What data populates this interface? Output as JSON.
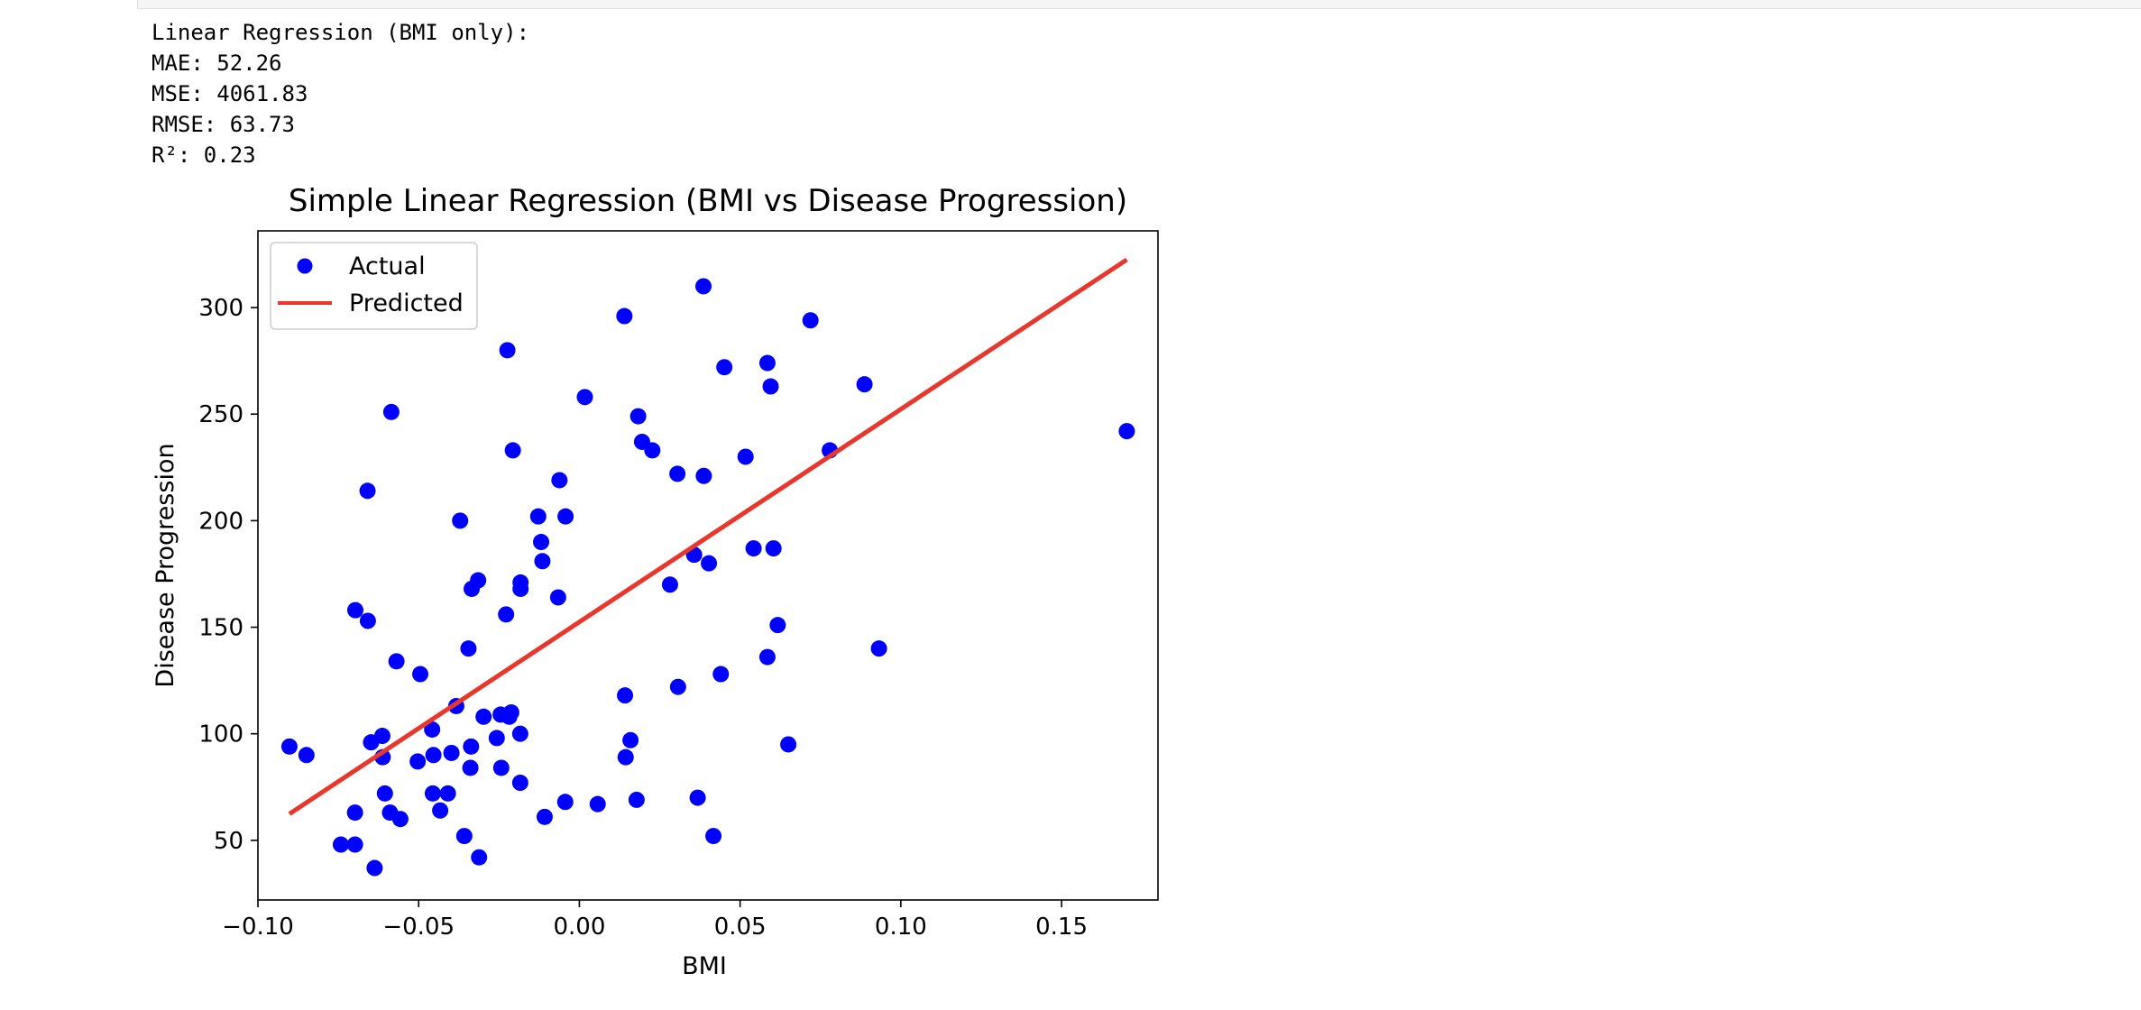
{
  "output": {
    "lines": [
      "Linear Regression (BMI only):",
      "MAE: 52.26",
      "MSE: 4061.83",
      "RMSE: 63.73",
      "R²: 0.23"
    ]
  },
  "chart_data": {
    "type": "scatter",
    "title": "Simple Linear Regression (BMI vs Disease Progression)",
    "xlabel": "BMI",
    "ylabel": "Disease Progression",
    "xlim": [
      -0.1,
      0.18
    ],
    "ylim": [
      22,
      336
    ],
    "xticks": [
      -0.1,
      -0.05,
      0.0,
      0.05,
      0.1,
      0.15
    ],
    "xtick_labels": [
      "−0.10",
      "−0.05",
      "0.00",
      "0.05",
      "0.10",
      "0.15"
    ],
    "yticks": [
      50,
      100,
      150,
      200,
      250,
      300
    ],
    "ytick_labels": [
      "50",
      "100",
      "150",
      "200",
      "250",
      "300"
    ],
    "grid": false,
    "legend": "top-left",
    "colors": {
      "actual": "#0000ff",
      "predicted": "#e8372c"
    },
    "series": [
      {
        "name": "Actual",
        "kind": "scatter",
        "points": [
          [
            -0.0902,
            94
          ],
          [
            -0.0849,
            90
          ],
          [
            -0.0742,
            48
          ],
          [
            -0.0698,
            48
          ],
          [
            -0.0698,
            63
          ],
          [
            -0.0697,
            158
          ],
          [
            -0.0659,
            214
          ],
          [
            -0.0658,
            153
          ],
          [
            -0.0648,
            96
          ],
          [
            -0.0637,
            37
          ],
          [
            -0.0613,
            99
          ],
          [
            -0.0612,
            89
          ],
          [
            -0.0605,
            72
          ],
          [
            -0.0589,
            63
          ],
          [
            -0.0585,
            251
          ],
          [
            -0.0569,
            134
          ],
          [
            -0.0557,
            60
          ],
          [
            -0.0503,
            87
          ],
          [
            -0.0495,
            128
          ],
          [
            -0.0458,
            102
          ],
          [
            -0.0456,
            72
          ],
          [
            -0.0454,
            90
          ],
          [
            -0.0433,
            64
          ],
          [
            -0.0409,
            72
          ],
          [
            -0.0398,
            91
          ],
          [
            -0.0383,
            113
          ],
          [
            -0.0371,
            200
          ],
          [
            -0.0358,
            52
          ],
          [
            -0.0345,
            140
          ],
          [
            -0.0339,
            84
          ],
          [
            -0.0337,
            94
          ],
          [
            -0.0335,
            168
          ],
          [
            -0.0315,
            172
          ],
          [
            -0.0312,
            42
          ],
          [
            -0.0298,
            108
          ],
          [
            -0.0257,
            98
          ],
          [
            -0.0245,
            109
          ],
          [
            -0.0243,
            84
          ],
          [
            -0.0228,
            156
          ],
          [
            -0.0224,
            280
          ],
          [
            -0.0218,
            108
          ],
          [
            -0.0212,
            110
          ],
          [
            -0.0207,
            233
          ],
          [
            -0.0184,
            100
          ],
          [
            -0.0184,
            77
          ],
          [
            -0.0183,
            171
          ],
          [
            -0.0183,
            168
          ],
          [
            -0.0128,
            202
          ],
          [
            -0.0119,
            190
          ],
          [
            -0.0115,
            181
          ],
          [
            -0.0108,
            61
          ],
          [
            -0.0066,
            164
          ],
          [
            -0.0062,
            219
          ],
          [
            -0.0044,
            68
          ],
          [
            -0.0043,
            202
          ],
          [
            0.0017,
            258
          ],
          [
            0.0057,
            67
          ],
          [
            0.014,
            296
          ],
          [
            0.0142,
            118
          ],
          [
            0.0144,
            89
          ],
          [
            0.0159,
            97
          ],
          [
            0.0178,
            69
          ],
          [
            0.0183,
            249
          ],
          [
            0.0195,
            237
          ],
          [
            0.0227,
            233
          ],
          [
            0.0282,
            170
          ],
          [
            0.0305,
            222
          ],
          [
            0.0307,
            122
          ],
          [
            0.0357,
            184
          ],
          [
            0.0368,
            70
          ],
          [
            0.0386,
            310
          ],
          [
            0.0387,
            221
          ],
          [
            0.0403,
            180
          ],
          [
            0.0417,
            52
          ],
          [
            0.044,
            128
          ],
          [
            0.0451,
            272
          ],
          [
            0.0517,
            230
          ],
          [
            0.0542,
            187
          ],
          [
            0.0585,
            136
          ],
          [
            0.0585,
            274
          ],
          [
            0.0595,
            263
          ],
          [
            0.0604,
            187
          ],
          [
            0.0617,
            151
          ],
          [
            0.065,
            95
          ],
          [
            0.0719,
            294
          ],
          [
            0.0779,
            233
          ],
          [
            0.0887,
            264
          ],
          [
            0.0932,
            140
          ],
          [
            0.1703,
            242
          ]
        ]
      },
      {
        "name": "Predicted",
        "kind": "line",
        "points": [
          [
            -0.0902,
            62.4
          ],
          [
            0.1703,
            322.5
          ]
        ]
      }
    ]
  }
}
